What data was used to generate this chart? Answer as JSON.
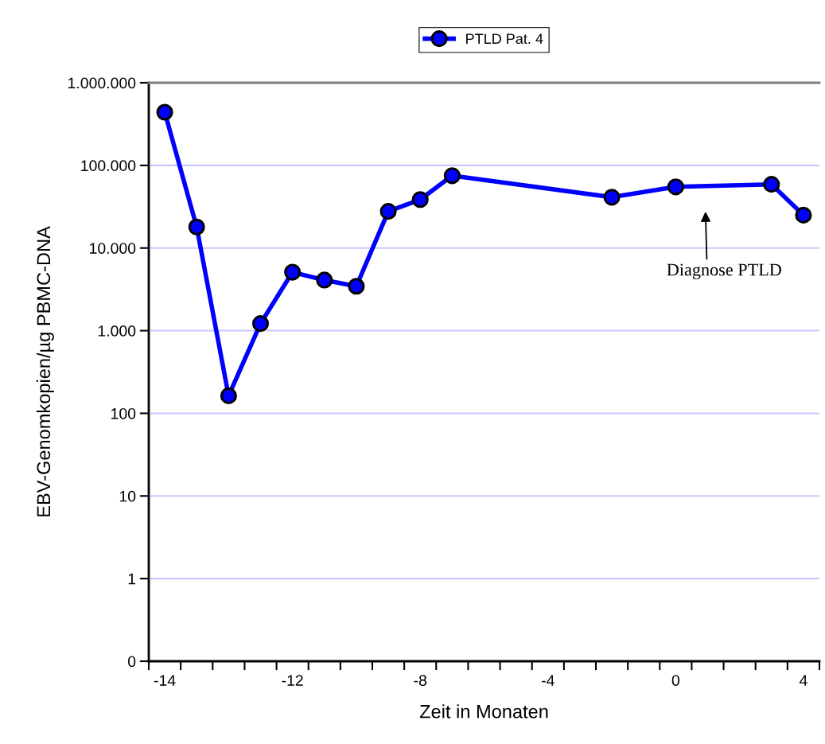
{
  "chart_data": {
    "type": "line",
    "xlabel": "Zeit in Monaten",
    "ylabel": "EBV-Genomkopien/µg PBMC-DNA",
    "categories": [
      "-14",
      null,
      null,
      null,
      "-12",
      null,
      null,
      null,
      "-8",
      null,
      null,
      null,
      "-4",
      null,
      null,
      null,
      "0",
      null,
      null,
      null,
      "4"
    ],
    "series": [
      {
        "name": "PTLD Pat. 4",
        "color": "#0000ff",
        "values": [
          440000,
          18000,
          163,
          1220,
          5100,
          4100,
          3450,
          27800,
          38600,
          75000,
          null,
          null,
          null,
          null,
          41200,
          null,
          55000,
          null,
          null,
          59000,
          25000
        ]
      }
    ],
    "log": "y",
    "ylim": [
      0.1,
      1000000
    ],
    "yticks": [
      {
        "value": 0.1,
        "label": "0"
      },
      1,
      10,
      100,
      {
        "value": 1000,
        "label": "1.000"
      },
      {
        "value": 10000,
        "label": "10.000"
      },
      {
        "value": 100000,
        "label": "100.000"
      },
      {
        "value": 1000000,
        "label": "1.000.000"
      }
    ],
    "grid": "y",
    "legend": "top",
    "marker": "circle",
    "line_style": "solid",
    "annotations": [
      "Diagnose PTLD"
    ]
  }
}
